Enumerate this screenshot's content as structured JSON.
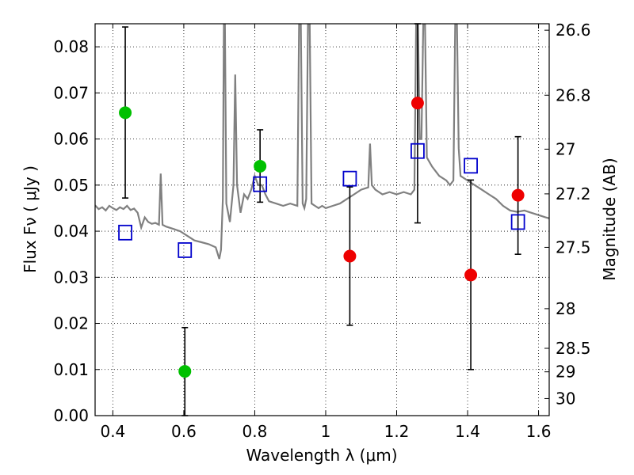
{
  "chart_data": {
    "type": "scatter",
    "xlabel": "Wavelength  λ (μm)",
    "ylabel": "Flux  Fν  ( μJy )",
    "ylabel_right": "Magnitude (AB)",
    "xlim": [
      0.35,
      1.63
    ],
    "ylim": [
      0.0,
      0.085
    ],
    "grid": true,
    "x_ticks": [
      0.4,
      0.6,
      0.8,
      1.0,
      1.2,
      1.4,
      1.6
    ],
    "x_tick_labels": [
      "0.4",
      "0.6",
      "0.8",
      "1",
      "1.2",
      "1.4",
      "1.6"
    ],
    "y_ticks": [
      0.0,
      0.01,
      0.02,
      0.03,
      0.04,
      0.05,
      0.06,
      0.07,
      0.08
    ],
    "y_tick_labels": [
      "0.00",
      "0.01",
      "0.02",
      "0.03",
      "0.04",
      "0.05",
      "0.06",
      "0.07",
      "0.08"
    ],
    "right_ticks": [
      {
        "label": "26.6",
        "flux": 0.0836
      },
      {
        "label": "26.8",
        "flux": 0.0695
      },
      {
        "label": "27",
        "flux": 0.0578
      },
      {
        "label": "27.2",
        "flux": 0.0481
      },
      {
        "label": "27.5",
        "flux": 0.0365
      },
      {
        "label": "28",
        "flux": 0.0232
      },
      {
        "label": "28.5",
        "flux": 0.0146
      },
      {
        "label": "29",
        "flux": 0.0095
      },
      {
        "label": "30",
        "flux": 0.0037
      }
    ],
    "series": [
      {
        "type": "line",
        "color": "#808080",
        "points": [
          [
            0.35,
            0.0456
          ],
          [
            0.36,
            0.0448
          ],
          [
            0.37,
            0.0452
          ],
          [
            0.38,
            0.0445
          ],
          [
            0.39,
            0.0455
          ],
          [
            0.4,
            0.045
          ],
          [
            0.41,
            0.0446
          ],
          [
            0.42,
            0.0452
          ],
          [
            0.43,
            0.0448
          ],
          [
            0.44,
            0.0455
          ],
          [
            0.45,
            0.0446
          ],
          [
            0.46,
            0.0449
          ],
          [
            0.47,
            0.044
          ],
          [
            0.48,
            0.0408
          ],
          [
            0.49,
            0.043
          ],
          [
            0.5,
            0.042
          ],
          [
            0.51,
            0.0416
          ],
          [
            0.52,
            0.0418
          ],
          [
            0.53,
            0.0414
          ],
          [
            0.535,
            0.0525
          ],
          [
            0.54,
            0.0414
          ],
          [
            0.55,
            0.041
          ],
          [
            0.57,
            0.0405
          ],
          [
            0.59,
            0.04
          ],
          [
            0.61,
            0.039
          ],
          [
            0.63,
            0.038
          ],
          [
            0.65,
            0.0376
          ],
          [
            0.67,
            0.0372
          ],
          [
            0.69,
            0.0365
          ],
          [
            0.7,
            0.034
          ],
          [
            0.705,
            0.036
          ],
          [
            0.71,
            0.047
          ],
          [
            0.713,
            0.085
          ],
          [
            0.716,
            0.085
          ],
          [
            0.72,
            0.046
          ],
          [
            0.73,
            0.042
          ],
          [
            0.74,
            0.05
          ],
          [
            0.745,
            0.074
          ],
          [
            0.75,
            0.05
          ],
          [
            0.76,
            0.044
          ],
          [
            0.77,
            0.048
          ],
          [
            0.78,
            0.047
          ],
          [
            0.79,
            0.049
          ],
          [
            0.8,
            0.052
          ],
          [
            0.81,
            0.05
          ],
          [
            0.82,
            0.05
          ],
          [
            0.83,
            0.048
          ],
          [
            0.84,
            0.0465
          ],
          [
            0.86,
            0.046
          ],
          [
            0.88,
            0.0455
          ],
          [
            0.9,
            0.046
          ],
          [
            0.92,
            0.0455
          ],
          [
            0.925,
            0.085
          ],
          [
            0.93,
            0.085
          ],
          [
            0.935,
            0.046
          ],
          [
            0.94,
            0.045
          ],
          [
            0.945,
            0.047
          ],
          [
            0.95,
            0.085
          ],
          [
            0.955,
            0.085
          ],
          [
            0.96,
            0.046
          ],
          [
            0.97,
            0.0455
          ],
          [
            0.98,
            0.045
          ],
          [
            0.99,
            0.0455
          ],
          [
            1.0,
            0.045
          ],
          [
            1.02,
            0.0455
          ],
          [
            1.04,
            0.046
          ],
          [
            1.06,
            0.047
          ],
          [
            1.08,
            0.048
          ],
          [
            1.1,
            0.049
          ],
          [
            1.12,
            0.0495
          ],
          [
            1.125,
            0.059
          ],
          [
            1.13,
            0.05
          ],
          [
            1.14,
            0.049
          ],
          [
            1.16,
            0.048
          ],
          [
            1.18,
            0.0485
          ],
          [
            1.2,
            0.048
          ],
          [
            1.22,
            0.0485
          ],
          [
            1.24,
            0.048
          ],
          [
            1.25,
            0.049
          ],
          [
            1.255,
            0.085
          ],
          [
            1.26,
            0.085
          ],
          [
            1.265,
            0.06
          ],
          [
            1.27,
            0.06
          ],
          [
            1.275,
            0.085
          ],
          [
            1.28,
            0.085
          ],
          [
            1.285,
            0.056
          ],
          [
            1.3,
            0.054
          ],
          [
            1.32,
            0.052
          ],
          [
            1.34,
            0.051
          ],
          [
            1.35,
            0.05
          ],
          [
            1.36,
            0.051
          ],
          [
            1.365,
            0.085
          ],
          [
            1.37,
            0.085
          ],
          [
            1.375,
            0.058
          ],
          [
            1.38,
            0.052
          ],
          [
            1.4,
            0.051
          ],
          [
            1.42,
            0.05
          ],
          [
            1.44,
            0.049
          ],
          [
            1.46,
            0.048
          ],
          [
            1.48,
            0.047
          ],
          [
            1.5,
            0.0455
          ],
          [
            1.52,
            0.0445
          ],
          [
            1.54,
            0.0442
          ],
          [
            1.56,
            0.0445
          ],
          [
            1.58,
            0.044
          ],
          [
            1.6,
            0.0435
          ],
          [
            1.62,
            0.043
          ],
          [
            1.63,
            0.0428
          ]
        ]
      },
      {
        "type": "scatter",
        "marker": "circle",
        "color": "#00c000",
        "points": [
          {
            "x": 0.435,
            "y": 0.0657,
            "err_lo": 0.0472,
            "err_hi": 0.0843
          },
          {
            "x": 0.603,
            "y": 0.0096,
            "err_lo": 0.0,
            "err_hi": 0.0191
          },
          {
            "x": 0.815,
            "y": 0.0541,
            "err_lo": 0.0463,
            "err_hi": 0.062
          }
        ]
      },
      {
        "type": "scatter",
        "marker": "circle",
        "color": "#ee0000",
        "points": [
          {
            "x": 1.068,
            "y": 0.0346,
            "err_lo": 0.0196,
            "err_hi": 0.0496
          },
          {
            "x": 1.259,
            "y": 0.0678,
            "err_lo": 0.0418,
            "err_hi": 0.085
          },
          {
            "x": 1.409,
            "y": 0.0305,
            "err_lo": 0.01,
            "err_hi": 0.0511
          },
          {
            "x": 1.542,
            "y": 0.0478,
            "err_lo": 0.035,
            "err_hi": 0.0605
          }
        ]
      },
      {
        "type": "scatter",
        "marker": "square",
        "color": "#0000cc",
        "points": [
          {
            "x": 0.435,
            "y": 0.0397
          },
          {
            "x": 0.603,
            "y": 0.0359
          },
          {
            "x": 0.815,
            "y": 0.0502
          },
          {
            "x": 1.068,
            "y": 0.0514
          },
          {
            "x": 1.259,
            "y": 0.0574
          },
          {
            "x": 1.409,
            "y": 0.0542
          },
          {
            "x": 1.542,
            "y": 0.042
          }
        ]
      }
    ]
  }
}
